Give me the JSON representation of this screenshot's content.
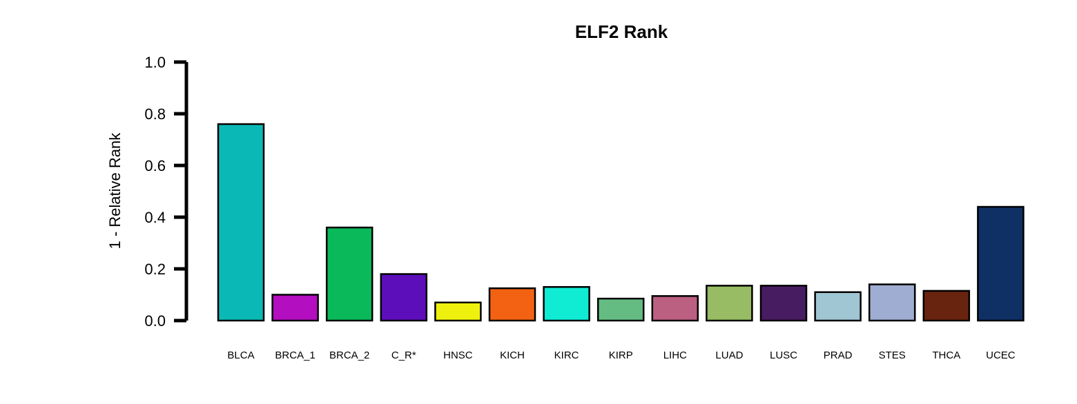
{
  "chart_data": {
    "type": "bar",
    "title": "ELF2 Rank",
    "xlabel": "",
    "ylabel": "1 - Relative Rank",
    "ylim": [
      0,
      1
    ],
    "yticks": [
      "0.0",
      "0.2",
      "0.4",
      "0.6",
      "0.8",
      "1.0"
    ],
    "grid": false,
    "legend": "none",
    "categories": [
      "BLCA",
      "BRCA_1",
      "BRCA_2",
      "C_R*",
      "HNSC",
      "KICH",
      "KIRC",
      "KIRP",
      "LIHC",
      "LUAD",
      "LUSC",
      "PRAD",
      "STES",
      "THCA",
      "UCEC"
    ],
    "values": [
      0.76,
      0.1,
      0.36,
      0.18,
      0.07,
      0.125,
      0.13,
      0.085,
      0.095,
      0.135,
      0.135,
      0.11,
      0.14,
      0.115,
      0.44
    ],
    "colors": [
      "#0ab9b5",
      "#b30ec0",
      "#0ab95a",
      "#5c0ebb",
      "#eef10e",
      "#f26212",
      "#10ecd4",
      "#65bc83",
      "#bb6081",
      "#97bc63",
      "#481c61",
      "#a0c5d3",
      "#a0add2",
      "#68240e",
      "#0f3065"
    ]
  }
}
